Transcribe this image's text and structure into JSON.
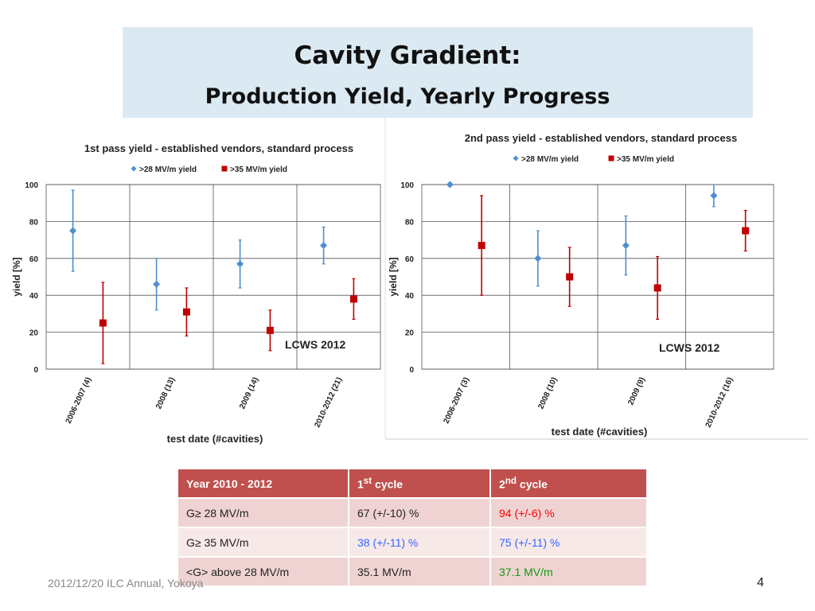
{
  "slide": {
    "title_line1": "Cavity Gradient:",
    "title_line2": "Production Yield, Yearly Progress",
    "footer": "2012/12/20 ILC Annual, Yokoya",
    "page_number": "4"
  },
  "chart_data": [
    {
      "type": "scatter",
      "title": "1st pass yield - established vendors, standard process",
      "xlabel": "test date (#cavities)",
      "ylabel": "yield [%]",
      "ylim": [
        0,
        100
      ],
      "yticks": [
        "0",
        "20",
        "40",
        "60",
        "80",
        "100"
      ],
      "categories": [
        "2006-2007 (4)",
        "2008 (13)",
        "2009 (14)",
        "2010-2012 (21)"
      ],
      "grid": true,
      "legend_position": "top",
      "annotation": "LCWS 2012",
      "series": [
        {
          "name": ">28 MV/m yield",
          "marker": "diamond",
          "color": "#4f8fd0",
          "values": [
            75,
            46,
            57,
            67
          ],
          "err_low": [
            53,
            32,
            44,
            57
          ],
          "err_high": [
            97,
            60,
            70,
            77
          ]
        },
        {
          "name": ">35 MV/m yield",
          "marker": "square",
          "color": "#c00000",
          "values": [
            25,
            31,
            21,
            38
          ],
          "err_low": [
            3,
            18,
            10,
            27
          ],
          "err_high": [
            47,
            44,
            32,
            49
          ]
        }
      ]
    },
    {
      "type": "scatter",
      "title": "2nd pass yield - established vendors, standard process",
      "xlabel": "test date (#cavities)",
      "ylabel": "yield [%]",
      "ylim": [
        0,
        100
      ],
      "yticks": [
        "0",
        "20",
        "40",
        "60",
        "80",
        "100"
      ],
      "categories": [
        "2006-2007 (3)",
        "2008 (10)",
        "2009 (9)",
        "2010-2012 (16)"
      ],
      "grid": true,
      "legend_position": "top",
      "annotation": "LCWS 2012",
      "series": [
        {
          "name": ">28 MV/m yield",
          "marker": "diamond",
          "color": "#4f8fd0",
          "values": [
            100,
            60,
            67,
            94
          ],
          "err_low": [
            100,
            45,
            51,
            88
          ],
          "err_high": [
            100,
            75,
            83,
            100
          ]
        },
        {
          "name": ">35 MV/m yield",
          "marker": "square",
          "color": "#c00000",
          "values": [
            67,
            50,
            44,
            75
          ],
          "err_low": [
            40,
            34,
            27,
            64
          ],
          "err_high": [
            94,
            66,
            61,
            86
          ]
        }
      ]
    }
  ],
  "table": {
    "headers": [
      "Year 2010 - 2012",
      "1",
      "st",
      " cycle",
      "2",
      "nd",
      " cycle"
    ],
    "rows": [
      [
        "G≥ 28 MV/m",
        "67 (+/-10) %",
        "94 (+/-6) %"
      ],
      [
        "G≥ 35 MV/m",
        "38 (+/-11) %",
        "75 (+/-11) %"
      ],
      [
        "<G>  above 28 MV/m",
        "35.1 MV/m",
        "37.1 MV/m"
      ]
    ]
  }
}
